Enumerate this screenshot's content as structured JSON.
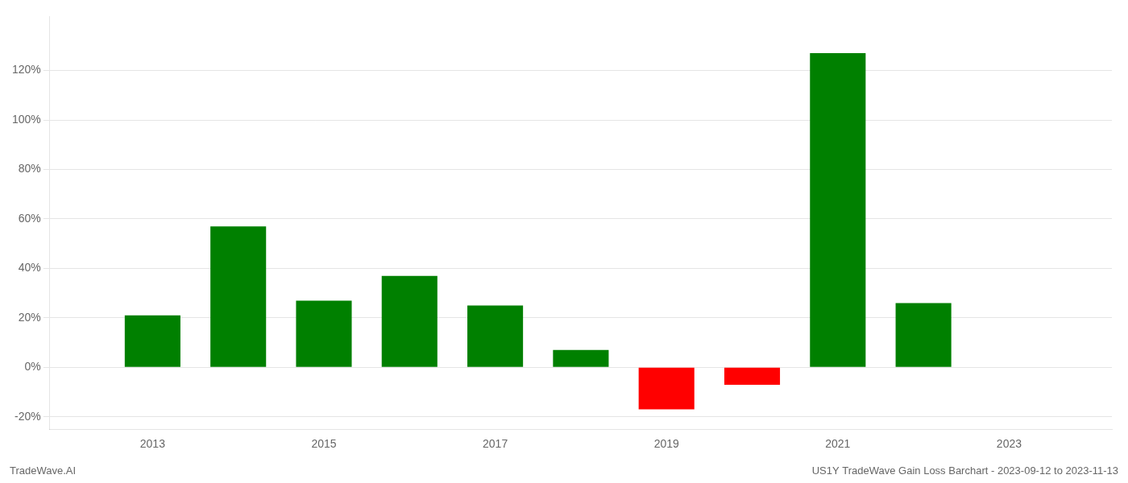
{
  "chart_data": {
    "type": "bar",
    "x": [
      2013,
      2014,
      2015,
      2016,
      2017,
      2018,
      2019,
      2020,
      2021,
      2022
    ],
    "values": [
      0.21,
      0.57,
      0.27,
      0.37,
      0.25,
      0.07,
      -0.17,
      -0.07,
      1.27,
      0.26
    ],
    "colors": [
      "#008000",
      "#008000",
      "#008000",
      "#008000",
      "#008000",
      "#008000",
      "#ff0000",
      "#ff0000",
      "#008000",
      "#008000"
    ],
    "xlim": [
      2011.8,
      2024.2
    ],
    "xticks": [
      2013,
      2015,
      2017,
      2019,
      2021,
      2023
    ],
    "ylim": [
      -0.25,
      1.42
    ],
    "yticks": [
      {
        "value": -0.2,
        "label": "-20%"
      },
      {
        "value": 0.0,
        "label": "0%"
      },
      {
        "value": 0.2,
        "label": "20%"
      },
      {
        "value": 0.4,
        "label": "40%"
      },
      {
        "value": 0.6,
        "label": "60%"
      },
      {
        "value": 0.8,
        "label": "80%"
      },
      {
        "value": 1.0,
        "label": "100%"
      },
      {
        "value": 1.2,
        "label": "120%"
      }
    ],
    "grid": true,
    "annotations": [
      "TradeWave.AI",
      "US1Y TradeWave Gain Loss Barchart - 2023-09-12 to 2023-11-13"
    ]
  }
}
